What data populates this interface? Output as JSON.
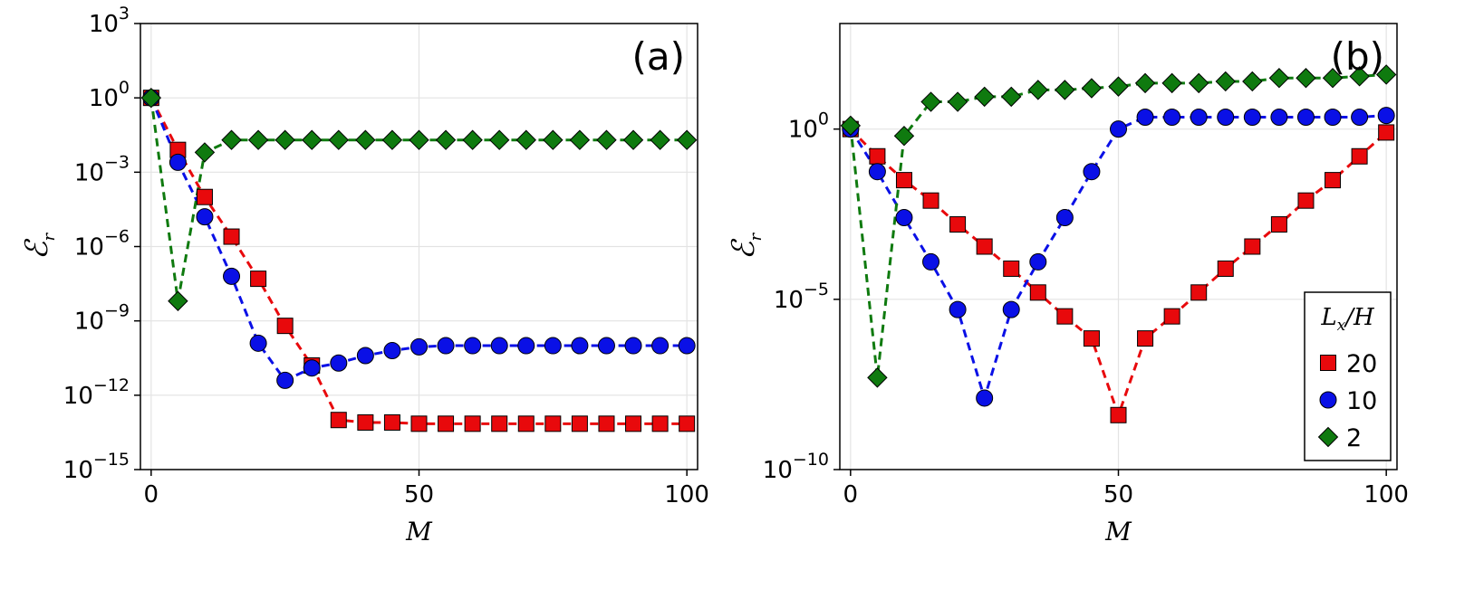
{
  "chart_data": [
    {
      "type": "line",
      "panel_label": "(a)",
      "xlabel": "M",
      "ylabel": "ℰr",
      "yscale": "log10",
      "xlim": [
        -2,
        102
      ],
      "ylim_exp": [
        -15,
        3
      ],
      "xticks": [
        0,
        50,
        100
      ],
      "xtick_labels": [
        "0",
        "50",
        "100"
      ],
      "yticks_exp": [
        -15,
        -12,
        -9,
        -6,
        -3,
        0,
        3
      ],
      "ytick_labels": [
        {
          "base": "10",
          "exp": "−15"
        },
        {
          "base": "10",
          "exp": "−12"
        },
        {
          "base": "10",
          "exp": "−9"
        },
        {
          "base": "10",
          "exp": "−6"
        },
        {
          "base": "10",
          "exp": "−3"
        },
        {
          "base": "10",
          "exp": "0"
        },
        {
          "base": "10",
          "exp": "3"
        }
      ],
      "grid": true,
      "x": [
        0,
        5,
        10,
        15,
        20,
        25,
        30,
        35,
        40,
        45,
        50,
        55,
        60,
        65,
        70,
        75,
        80,
        85,
        90,
        95,
        100
      ],
      "series": [
        {
          "name": "20",
          "color": "#e8090c",
          "marker": "square",
          "log10_values": [
            0,
            -2.1,
            -4.0,
            -5.6,
            -7.3,
            -9.2,
            -10.8,
            -13.0,
            -13.1,
            -13.1,
            -13.15,
            -13.15,
            -13.15,
            -13.15,
            -13.15,
            -13.15,
            -13.15,
            -13.15,
            -13.15,
            -13.15,
            -13.15
          ]
        },
        {
          "name": "10",
          "color": "#0a10e6",
          "marker": "circle",
          "log10_values": [
            0,
            -2.6,
            -4.8,
            -7.2,
            -9.9,
            -11.4,
            -10.9,
            -10.7,
            -10.4,
            -10.2,
            -10.05,
            -10.0,
            -10.0,
            -10.0,
            -10.0,
            -10.0,
            -10.0,
            -10.0,
            -10.0,
            -10.0,
            -10.0
          ]
        },
        {
          "name": "2",
          "color": "#0f7a0f",
          "marker": "diamond",
          "log10_values": [
            0,
            -8.2,
            -2.2,
            -1.7,
            -1.7,
            -1.7,
            -1.7,
            -1.7,
            -1.7,
            -1.7,
            -1.7,
            -1.7,
            -1.7,
            -1.7,
            -1.7,
            -1.7,
            -1.7,
            -1.7,
            -1.7,
            -1.7,
            -1.7
          ]
        }
      ]
    },
    {
      "type": "line",
      "panel_label": "(b)",
      "xlabel": "M",
      "ylabel": "ℰr",
      "yscale": "log10",
      "xlim": [
        -2,
        102
      ],
      "ylim_exp": [
        -10,
        3.1
      ],
      "xticks": [
        0,
        50,
        100
      ],
      "xtick_labels": [
        "0",
        "50",
        "100"
      ],
      "yticks_exp": [
        -10,
        -5,
        0
      ],
      "ytick_labels": [
        {
          "base": "10",
          "exp": "−10"
        },
        {
          "base": "10",
          "exp": "−5"
        },
        {
          "base": "10",
          "exp": "0"
        }
      ],
      "grid": true,
      "legend": {
        "title_main": "L",
        "title_sub": "x",
        "title_rest": "/H",
        "position": "bottom-right"
      },
      "x": [
        0,
        5,
        10,
        15,
        20,
        25,
        30,
        35,
        40,
        45,
        50,
        55,
        60,
        65,
        70,
        75,
        80,
        85,
        90,
        95,
        100
      ],
      "series": [
        {
          "name": "20",
          "color": "#e8090c",
          "marker": "square",
          "log10_values": [
            0,
            -0.8,
            -1.5,
            -2.1,
            -2.8,
            -3.45,
            -4.1,
            -4.8,
            -5.5,
            -6.15,
            -8.4,
            -6.15,
            -5.5,
            -4.8,
            -4.1,
            -3.45,
            -2.8,
            -2.1,
            -1.5,
            -0.8,
            -0.1
          ]
        },
        {
          "name": "10",
          "color": "#0a10e6",
          "marker": "circle",
          "log10_values": [
            0,
            -1.25,
            -2.6,
            -3.9,
            -5.3,
            -7.9,
            -5.3,
            -3.9,
            -2.6,
            -1.25,
            0,
            0.35,
            0.35,
            0.35,
            0.35,
            0.35,
            0.35,
            0.35,
            0.35,
            0.35,
            0.4
          ]
        },
        {
          "name": "2",
          "color": "#0f7a0f",
          "marker": "diamond",
          "log10_values": [
            0.1,
            -7.3,
            -0.2,
            0.8,
            0.8,
            0.95,
            0.95,
            1.15,
            1.15,
            1.2,
            1.25,
            1.35,
            1.35,
            1.35,
            1.4,
            1.4,
            1.5,
            1.5,
            1.5,
            1.55,
            1.6
          ]
        }
      ]
    }
  ]
}
